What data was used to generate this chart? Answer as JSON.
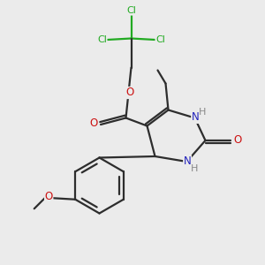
{
  "bg_color": "#ebebeb",
  "bond_color": "#2d2d2d",
  "N_color": "#2222bb",
  "O_color": "#cc1111",
  "Cl_color": "#22aa22",
  "H_color": "#888888",
  "line_width": 1.6,
  "figsize": [
    3.0,
    3.0
  ],
  "dpi": 100,
  "xlim": [
    0,
    10
  ],
  "ylim": [
    0,
    10
  ]
}
